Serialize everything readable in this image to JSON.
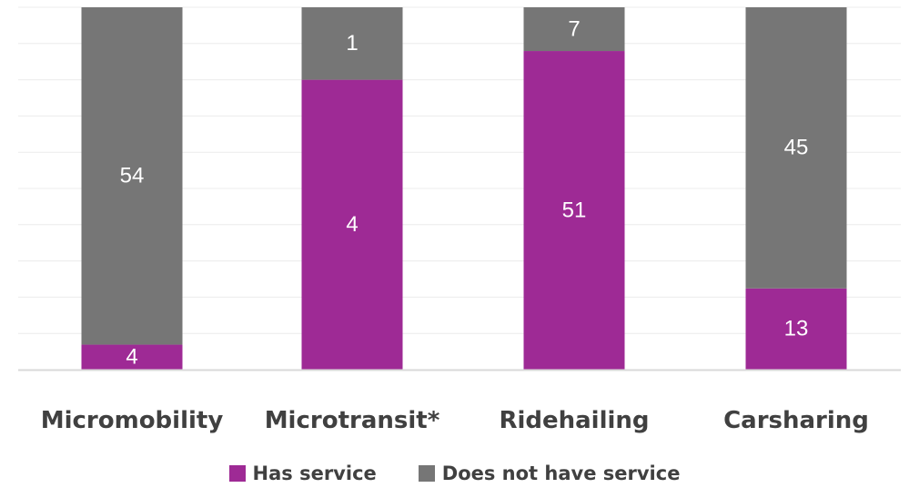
{
  "chart_data": {
    "type": "bar",
    "stacked": true,
    "categories": [
      "Micromobility",
      "Microtransit*",
      "Ridehailing",
      "Carsharing"
    ],
    "series": [
      {
        "name": "Has service",
        "values": [
          4,
          4,
          51,
          13
        ],
        "color": "#9e2a95"
      },
      {
        "name": "Does not have service",
        "values": [
          54,
          1,
          7,
          45
        ],
        "color": "#767676"
      }
    ],
    "normalized_to_percent": true,
    "ylim": [
      0,
      100
    ],
    "grid": true,
    "legend": "bottom",
    "title": "",
    "xlabel": "",
    "ylabel": ""
  },
  "legend": {
    "has_service": "Has service",
    "no_service": "Does not have service"
  }
}
